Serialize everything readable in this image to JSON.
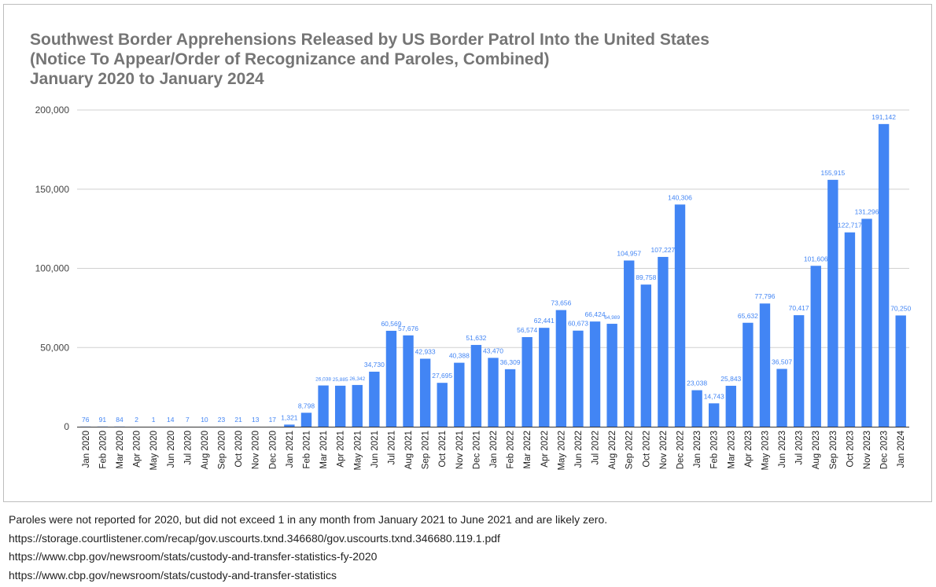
{
  "chart_data": {
    "type": "bar",
    "title": [
      "Southwest Border Apprehensions Released by US Border Patrol Into the United States",
      "(Notice To Appear/Order of Recognizance and Paroles, Combined)",
      "January 2020 to January 2024"
    ],
    "xlabel": "",
    "ylabel": "",
    "ylim": [
      0,
      200000
    ],
    "yticks": [
      0,
      50000,
      100000,
      150000,
      200000
    ],
    "ytick_labels": [
      "0",
      "50,000",
      "100,000",
      "150,000",
      "200,000"
    ],
    "grid": true,
    "legend": "none",
    "bar_color": "#4285f4",
    "label_color": "#4285f4",
    "categories": [
      "Jan 2020",
      "Feb 2020",
      "Mar 2020",
      "Apr 2020",
      "May 2020",
      "Jun 2020",
      "Jul 2020",
      "Aug 2020",
      "Sep 2020",
      "Oct 2020",
      "Nov 2020",
      "Dec 2020",
      "Jan 2021",
      "Feb 2021",
      "Mar 2021",
      "Apr 2021",
      "May 2021",
      "Jun 2021",
      "Jul 2021",
      "Aug 2021",
      "Sep 2021",
      "Oct 2021",
      "Nov 2021",
      "Dec 2021",
      "Jan 2022",
      "Feb 2022",
      "Mar 2022",
      "Apr 2022",
      "May 2022",
      "Jun 2022",
      "Jul 2022",
      "Aug 2022",
      "Sep 2022",
      "Oct 2022",
      "Nov 2022",
      "Dec 2022",
      "Jan 2023",
      "Feb 2023",
      "Mar 2023",
      "Apr 2023",
      "May 2023",
      "Jun 2023",
      "Jul 2023",
      "Aug 2023",
      "Sep 2023",
      "Oct 2023",
      "Nov 2023",
      "Dec 2023",
      "Jan 2024"
    ],
    "values": [
      76,
      91,
      84,
      2,
      1,
      14,
      7,
      10,
      23,
      21,
      13,
      17,
      1321,
      8798,
      26038,
      25885,
      26342,
      34730,
      60569,
      57676,
      42933,
      27695,
      40388,
      51632,
      43470,
      36309,
      56574,
      62441,
      73656,
      60673,
      66424,
      64989,
      104957,
      89758,
      107227,
      140306,
      23038,
      14743,
      25843,
      65632,
      77796,
      36507,
      70417,
      101606,
      155915,
      122717,
      131296,
      191142,
      70250
    ],
    "data_labels": [
      "76",
      "91",
      "84",
      "2",
      "1",
      "14",
      "7",
      "10",
      "23",
      "21",
      "13",
      "17",
      "1,321",
      "8,798",
      "26,038",
      "25,885",
      "26,342",
      "34,730",
      "60,569",
      "57,676",
      "42,933",
      "27,695",
      "40,388",
      "51,632",
      "43,470",
      "36,309",
      "56,574",
      "62,441",
      "73,656",
      "60,673",
      "66,424",
      "64,989",
      "104,957",
      "89,758",
      "107,227",
      "140,306",
      "23,038",
      "14,743",
      "25,843",
      "65,632",
      "77,796",
      "36,507",
      "70,417",
      "101,606",
      "155,915",
      "122,717",
      "131,296",
      "191,142",
      "70,250"
    ]
  },
  "footnotes": [
    "Paroles were not reported for 2020, but did not exceed 1 in any month from January 2021 to June 2021 and are likely zero.",
    "https://storage.courtlistener.com/recap/gov.uscourts.txnd.346680/gov.uscourts.txnd.346680.119.1.pdf",
    "https://www.cbp.gov/newsroom/stats/custody-and-transfer-statistics-fy-2020",
    "https://www.cbp.gov/newsroom/stats/custody-and-transfer-statistics"
  ]
}
